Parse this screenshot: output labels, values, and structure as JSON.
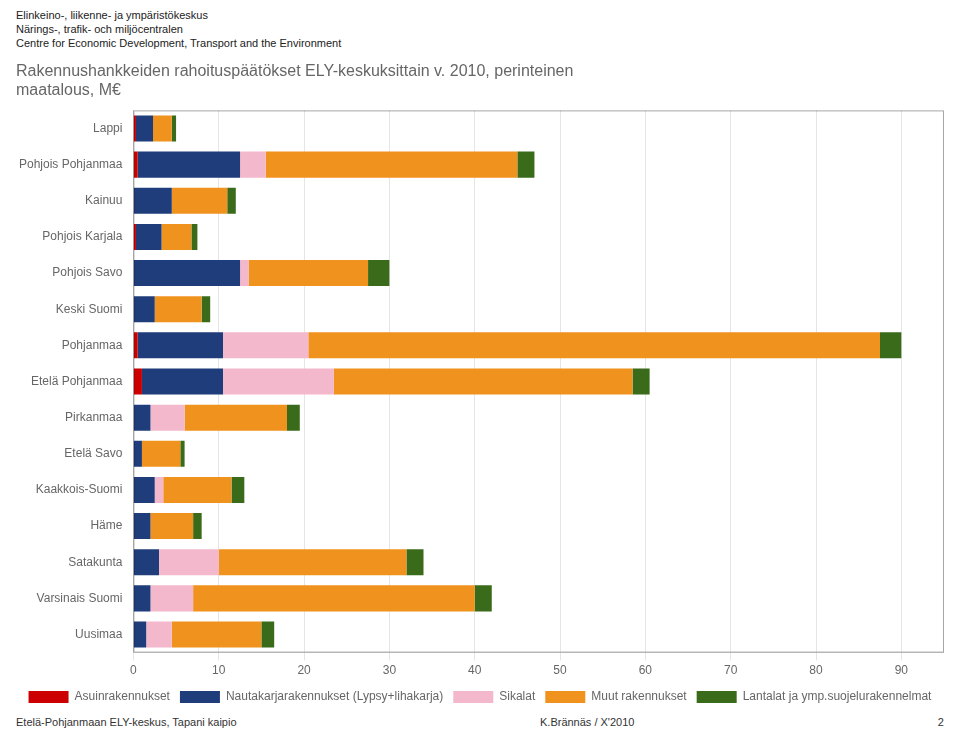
{
  "chart_data": {
    "type": "bar",
    "orientation": "horizontal",
    "stacked": true,
    "title": "Rakennushankkeiden rahoituspäätökset ELY-keskuksittain v. 2010, perinteinen\nmaatalous, M€",
    "subtitle": [
      "Elinkeino-, liikenne- ja ympäristökeskus",
      "Närings-, trafik- och miljöcentralen",
      "Centre for Economic Development, Transport and the Environment"
    ],
    "annotations": [
      "Etelä-Pohjanmaan ELY-keskus, Tapani kaipio",
      "K.Brännäs / X'2010",
      "2"
    ],
    "categories": [
      "Lappi",
      "Pohjois Pohjanmaa",
      "Kainuu",
      "Pohjois Karjala",
      "Pohjois Savo",
      "Keski Suomi",
      "Pohjanmaa",
      "Etelä Pohjanmaa",
      "Pirkanmaa",
      "Etelä Savo",
      "Kaakkois-Suomi",
      "Häme",
      "Satakunta",
      "Varsinais Suomi",
      "Uusimaa"
    ],
    "series": [
      {
        "name": "Asuinrakennukset",
        "color": "#cc0000",
        "values": [
          0.3,
          0.5,
          0.0,
          0.3,
          0.0,
          0.0,
          0.5,
          1.0,
          0.0,
          0.0,
          0.0,
          0.0,
          0.0,
          0.0,
          0.0
        ]
      },
      {
        "name": "Nautakarjarakennukset (Lypsy+lihakarja)",
        "color": "#1f3d7a",
        "values": [
          2.0,
          12.0,
          4.5,
          3.0,
          12.5,
          2.5,
          10.0,
          9.5,
          2.0,
          1.0,
          2.5,
          2.0,
          3.0,
          2.0,
          1.5
        ]
      },
      {
        "name": "Sikalat",
        "color": "#f4b8cc",
        "values": [
          0.0,
          3.0,
          0.0,
          0.0,
          1.0,
          0.0,
          10.0,
          13.0,
          4.0,
          0.0,
          1.0,
          0.0,
          7.0,
          5.0,
          3.0
        ]
      },
      {
        "name": "Muut rakennukset",
        "color": "#f0921e",
        "values": [
          2.2,
          29.5,
          6.5,
          3.5,
          14.0,
          5.5,
          67.0,
          35.0,
          12.0,
          4.5,
          8.0,
          5.0,
          22.0,
          33.0,
          10.5
        ]
      },
      {
        "name": "Lantalat ja ymp.suojelurakennelmat",
        "color": "#3a6b1a",
        "values": [
          0.5,
          2.0,
          1.0,
          0.7,
          2.5,
          1.0,
          2.5,
          2.0,
          1.5,
          0.5,
          1.5,
          1.0,
          2.0,
          2.0,
          1.5
        ]
      }
    ],
    "xlim": [
      0,
      95
    ],
    "xticks": [
      0,
      10,
      20,
      30,
      40,
      50,
      60,
      70,
      80,
      90
    ],
    "grid": true,
    "legend": "bottom"
  }
}
